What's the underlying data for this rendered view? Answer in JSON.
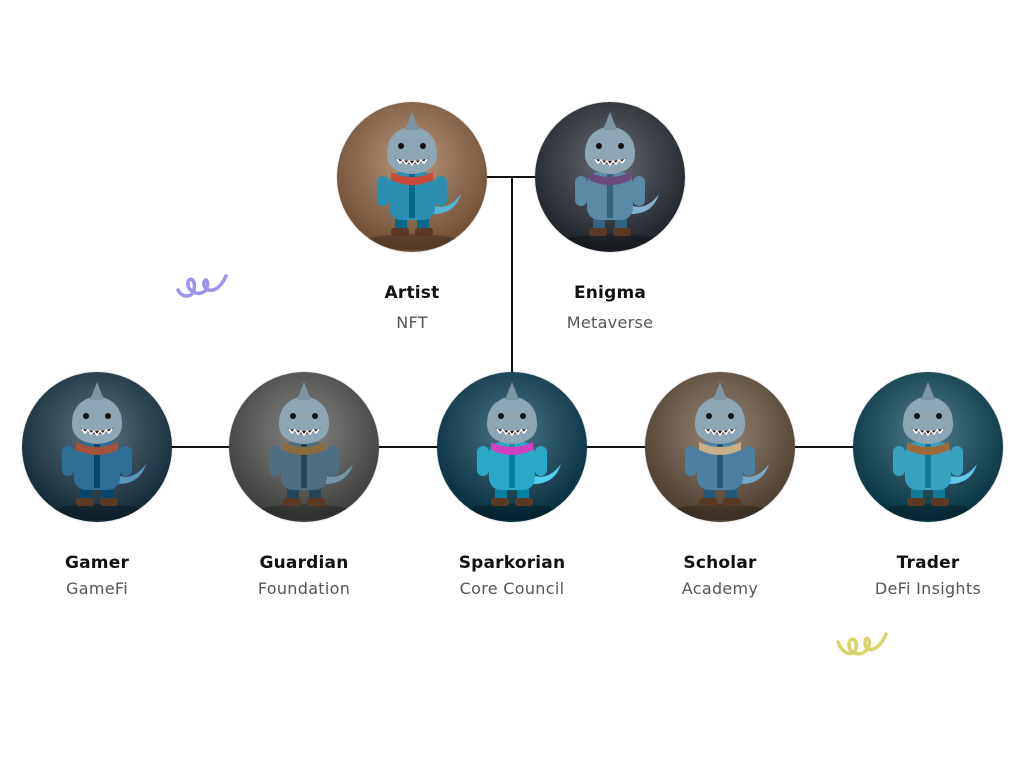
{
  "members": [
    {
      "name": "Artist",
      "role": "NFT",
      "bg": "#8a6a50",
      "body": "#2a8fb0",
      "accent": "#c94a3b",
      "icon": "shark-artist-avatar"
    },
    {
      "name": "Enigma",
      "role": "Metaverse",
      "bg": "#3a3f46",
      "body": "#5a8aa6",
      "accent": "#6a4a7a",
      "icon": "shark-wizard-avatar"
    },
    {
      "name": "Gamer",
      "role": "GameFi",
      "bg": "#2f4552",
      "body": "#2f6f95",
      "accent": "#a0523c",
      "icon": "shark-gamer-avatar"
    },
    {
      "name": "Guardian",
      "role": "Foundation",
      "bg": "#5a5a58",
      "body": "#4f6d80",
      "accent": "#8a6a40",
      "icon": "shark-guardian-avatar"
    },
    {
      "name": "Sparkorian",
      "role": "Core Council",
      "bg": "#1f4a5a",
      "body": "#2aa8c8",
      "accent": "#d040c0",
      "icon": "shark-sparkorian-avatar"
    },
    {
      "name": "Scholar",
      "role": "Academy",
      "bg": "#6a5a4c",
      "body": "#4d7fa0",
      "accent": "#c8b08a",
      "icon": "shark-scholar-avatar"
    },
    {
      "name": "Trader",
      "role": "DeFi Insights",
      "bg": "#24505e",
      "body": "#3aa0c0",
      "accent": "#9a6a3a",
      "icon": "shark-trader-avatar"
    }
  ],
  "colors": {
    "line": "#111111",
    "squiggle_purple": "#9d94f0",
    "squiggle_yellow": "#d8d46a"
  }
}
